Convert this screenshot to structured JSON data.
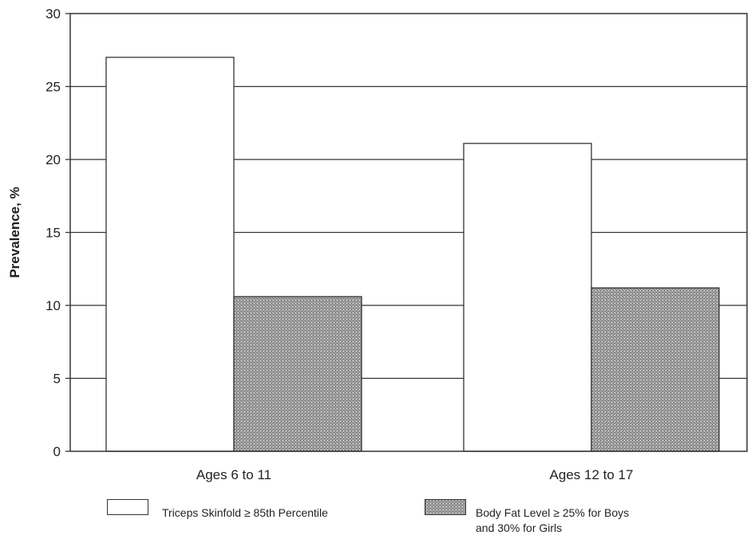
{
  "chart_data": {
    "type": "bar",
    "title": "",
    "ylabel": "Prevalence, %",
    "xlabel": "",
    "ylim": [
      0,
      30
    ],
    "yticks": [
      0,
      5,
      10,
      15,
      20,
      25,
      30
    ],
    "grid": true,
    "categories": [
      "Ages 6 to 11",
      "Ages 12 to 17"
    ],
    "series": [
      {
        "name": "Triceps Skinfold ≥ 85th Percentile",
        "values": [
          27,
          21.1
        ],
        "fill": "#ffffff"
      },
      {
        "name": "Body Fat Level ≥ 25% for Boys and 30% for Girls",
        "values": [
          10.6,
          11.2
        ],
        "fill": "#9a9a9a"
      }
    ],
    "legend": {
      "placement": "bottom",
      "items": [
        {
          "label": "Triceps Skinfold ≥ 85th Percentile"
        },
        {
          "label": "Body Fat Level ≥ 25% for Boys\nand 30% for Girls"
        }
      ]
    }
  }
}
